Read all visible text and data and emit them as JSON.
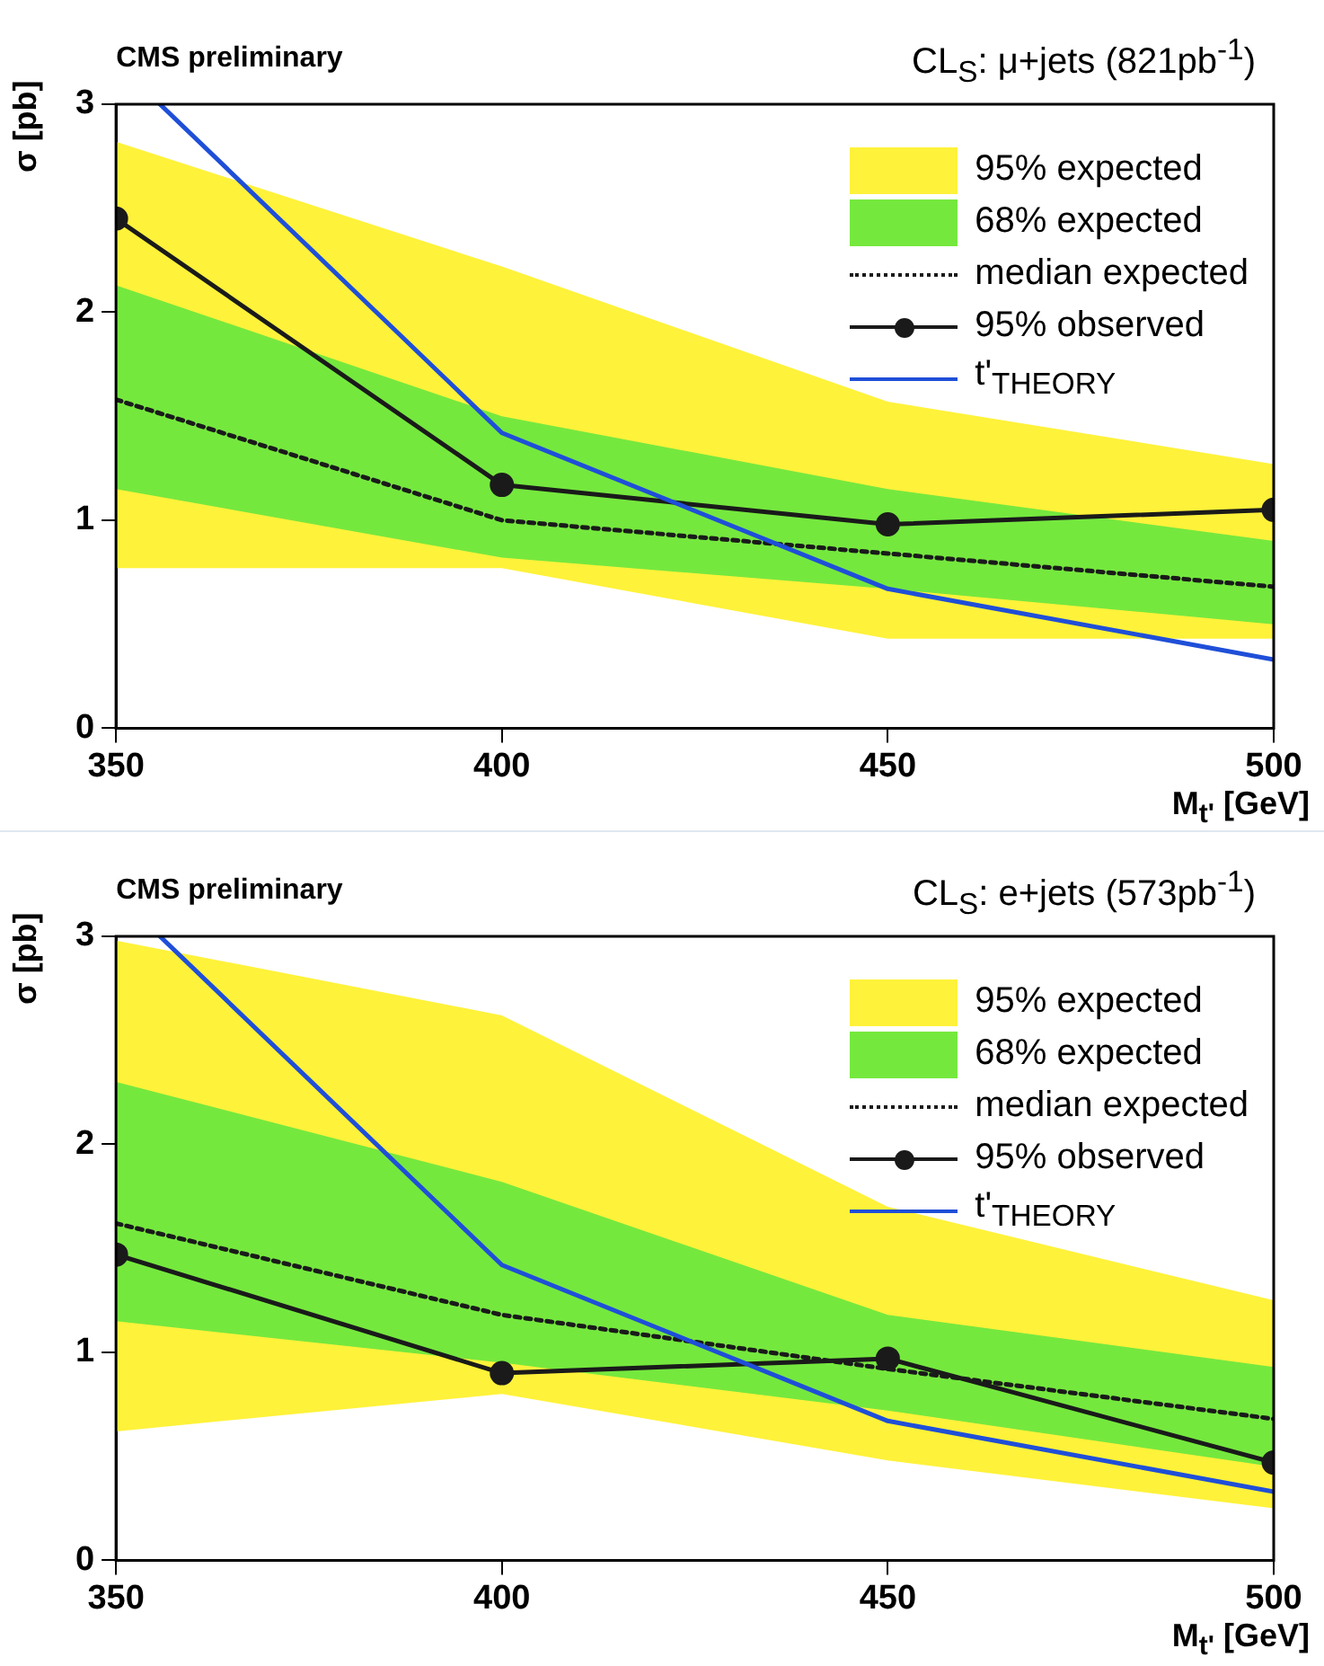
{
  "chart_data": [
    {
      "type": "line",
      "title": "CMS preliminary",
      "subtitle": "CL$_{S}$: μ+jets (821pb$^{-1}$)",
      "xlabel": "M$_{t'}$ [GeV]",
      "ylabel": "σ [pb]",
      "x": [
        350,
        400,
        450,
        500
      ],
      "xlim": [
        350,
        500
      ],
      "xticks": [
        350,
        400,
        450,
        500
      ],
      "ylim": [
        0,
        3
      ],
      "yticks": [
        0,
        1,
        2,
        3
      ],
      "grid": false,
      "legend": "top right",
      "series": [
        {
          "name": "95% expected",
          "type": "area",
          "color": "#fff23a",
          "values": [
            null,
            null,
            null,
            null
          ],
          "lower": [
            0.77,
            0.77,
            0.43,
            0.43
          ],
          "upper": [
            2.82,
            2.22,
            1.57,
            1.27
          ]
        },
        {
          "name": "68% expected",
          "type": "area",
          "color": "#75e83e",
          "values": [
            null,
            null,
            null,
            null
          ],
          "lower": [
            1.15,
            0.82,
            0.67,
            0.5
          ],
          "upper": [
            2.13,
            1.5,
            1.15,
            0.9
          ]
        },
        {
          "name": "median expected",
          "type": "line",
          "color": "#1a1a1a",
          "line_style": "dotted",
          "marker": "none",
          "values": [
            1.58,
            1.0,
            0.84,
            0.68
          ]
        },
        {
          "name": "95% observed",
          "type": "line",
          "color": "#1a1a1a",
          "line_style": "solid",
          "marker": "circle",
          "values": [
            2.45,
            1.17,
            0.98,
            1.05
          ]
        },
        {
          "name": "t'$_{THEORY}$",
          "type": "line",
          "color": "#1f4fd8",
          "line_style": "solid",
          "marker": "none",
          "x": [
            355.7,
            400,
            450,
            500
          ],
          "values": [
            3.0,
            1.42,
            0.67,
            0.33
          ]
        }
      ]
    },
    {
      "type": "line",
      "title": "CMS preliminary",
      "subtitle": "CL$_{S}$: e+jets (573pb$^{-1}$)",
      "xlabel": "M$_{t'}$ [GeV]",
      "ylabel": "σ [pb]",
      "x": [
        350,
        400,
        450,
        500
      ],
      "xlim": [
        350,
        500
      ],
      "xticks": [
        350,
        400,
        450,
        500
      ],
      "ylim": [
        0,
        3
      ],
      "yticks": [
        0,
        1,
        2,
        3
      ],
      "grid": false,
      "legend": "top right",
      "series": [
        {
          "name": "95% expected",
          "type": "area",
          "color": "#fff23a",
          "values": [
            null,
            null,
            null,
            null
          ],
          "lower": [
            0.62,
            0.8,
            0.48,
            0.25
          ],
          "upper": [
            2.98,
            2.62,
            1.7,
            1.25
          ]
        },
        {
          "name": "68% expected",
          "type": "area",
          "color": "#75e83e",
          "values": [
            null,
            null,
            null,
            null
          ],
          "lower": [
            1.15,
            0.95,
            0.72,
            0.45
          ],
          "upper": [
            2.3,
            1.82,
            1.18,
            0.93
          ]
        },
        {
          "name": "median expected",
          "type": "line",
          "color": "#1a1a1a",
          "line_style": "dotted",
          "marker": "none",
          "values": [
            1.62,
            1.18,
            0.92,
            0.68
          ]
        },
        {
          "name": "95% observed",
          "type": "line",
          "color": "#1a1a1a",
          "line_style": "solid",
          "marker": "circle",
          "values": [
            1.47,
            0.9,
            0.97,
            0.47
          ]
        },
        {
          "name": "t'$_{THEORY}$",
          "type": "line",
          "color": "#1f4fd8",
          "line_style": "solid",
          "marker": "none",
          "x": [
            355.7,
            400,
            450,
            500
          ],
          "values": [
            3.0,
            1.42,
            0.67,
            0.33
          ]
        }
      ]
    }
  ]
}
